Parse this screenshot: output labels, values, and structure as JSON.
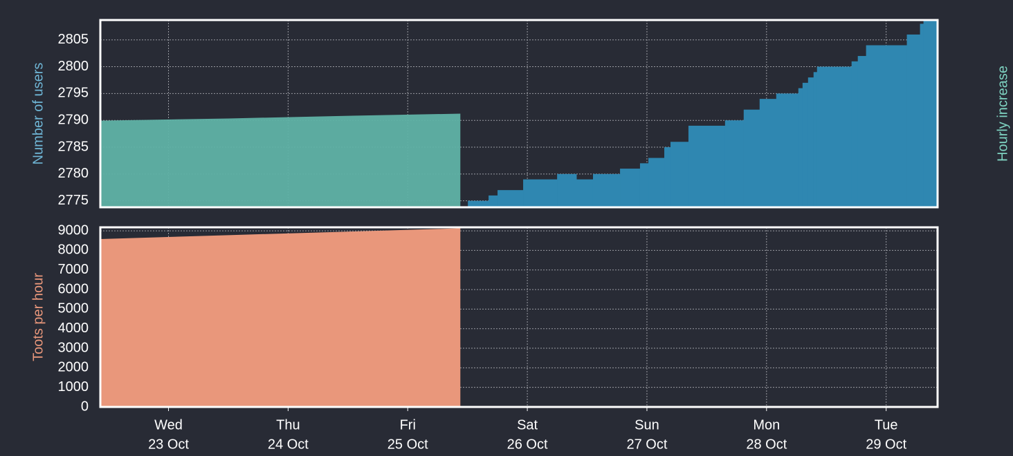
{
  "chart_data": [
    {
      "type": "area",
      "ylabel": "Number of users",
      "y2label": "Hourly increase",
      "xlim": [
        -0.57,
        6.43
      ],
      "ylim": [
        2773.8,
        2808.7
      ],
      "yticks": [
        2775,
        2780,
        2785,
        2790,
        2795,
        2800,
        2805
      ],
      "y2lim": [
        0,
        35
      ],
      "grid": true,
      "series": [
        {
          "color": "#2f87b1",
          "step": "post",
          "x": [
            2.503,
            2.676,
            2.751,
            2.965,
            3.249,
            3.41,
            3.549,
            3.775,
            3.942,
            4.012,
            4.145,
            4.197,
            4.347,
            4.653,
            4.809,
            4.942,
            5.081,
            5.266,
            5.301,
            5.347,
            5.393,
            5.422,
            5.711,
            5.763,
            5.832,
            6.173,
            6.283,
            6.312
          ],
          "values": [
            2775,
            2776,
            2777,
            2779,
            2780,
            2779,
            2780,
            2781,
            2782,
            2783,
            2785,
            2786,
            2789,
            2790,
            2792,
            2794,
            2795,
            2796,
            2797,
            2798,
            2799,
            2800,
            2801,
            2802,
            2804,
            2806,
            2808,
            2809
          ]
        },
        {
          "color": "#5fb2a7",
          "axis": "y2",
          "x": [
            -0.57,
            0.5,
            1.5,
            2.44
          ],
          "values": [
            16.2,
            16.6,
            17.1,
            17.5
          ]
        }
      ]
    },
    {
      "type": "area",
      "ylabel": "Toots per hour",
      "xlim": [
        -0.57,
        6.43
      ],
      "ylim": [
        0,
        9180
      ],
      "yticks": [
        0,
        1000,
        2000,
        3000,
        4000,
        5000,
        6000,
        7000,
        8000,
        9000
      ],
      "grid": true,
      "xticks": [
        {
          "value": 0,
          "label": "Wed",
          "sublabel": "23 Oct"
        },
        {
          "value": 1,
          "label": "Thu",
          "sublabel": "24 Oct"
        },
        {
          "value": 2,
          "label": "Fri",
          "sublabel": "25 Oct"
        },
        {
          "value": 3,
          "label": "Sat",
          "sublabel": "26 Oct"
        },
        {
          "value": 4,
          "label": "Sun",
          "sublabel": "27 Oct"
        },
        {
          "value": 5,
          "label": "Mon",
          "sublabel": "28 Oct"
        },
        {
          "value": 6,
          "label": "Tue",
          "sublabel": "29 Oct"
        }
      ],
      "series": [
        {
          "color": "#e9977b",
          "x": [
            -0.57,
            0.5,
            1.5,
            2.44
          ],
          "values": [
            8580,
            8780,
            8960,
            9130
          ]
        }
      ]
    }
  ]
}
